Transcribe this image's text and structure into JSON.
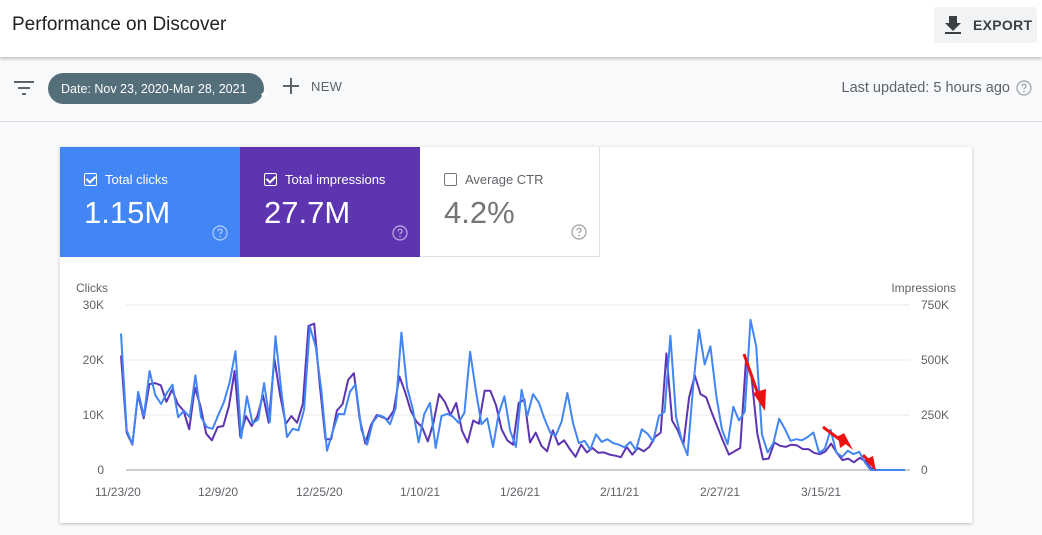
{
  "header": {
    "title": "Performance on Discover",
    "export_label": "EXPORT"
  },
  "toolbar": {
    "date_filter": "Date: Nov 23, 2020-Mar 28, 2021",
    "new_label": "NEW",
    "last_updated": "Last updated: 5 hours ago"
  },
  "metrics": [
    {
      "label": "Total clicks",
      "value": "1.15M",
      "checked": true,
      "color": "#4285f4"
    },
    {
      "label": "Total impressions",
      "value": "27.7M",
      "checked": true,
      "color": "#5e35b1"
    },
    {
      "label": "Average CTR",
      "value": "4.2%",
      "checked": false,
      "color": "#ffffff"
    }
  ],
  "chart": {
    "left_axis_title": "Clicks",
    "right_axis_title": "Impressions",
    "left_ticks": [
      "30K",
      "20K",
      "10K",
      "0"
    ],
    "right_ticks": [
      "750K",
      "500K",
      "250K",
      "0"
    ],
    "x_ticks": [
      "11/23/20",
      "12/9/20",
      "12/25/20",
      "1/10/21",
      "1/26/21",
      "2/11/21",
      "2/27/21",
      "3/15/21"
    ]
  },
  "chart_data": {
    "type": "line",
    "title": "Performance on Discover",
    "x_start": "11/23/20",
    "x_end": "3/28/21",
    "x_tick_labels": [
      "11/23/20",
      "12/9/20",
      "12/25/20",
      "1/10/21",
      "1/26/21",
      "2/11/21",
      "2/27/21",
      "3/15/21"
    ],
    "ylabel_left": "Clicks",
    "ylabel_right": "Impressions",
    "ylim_left": [
      0,
      30000
    ],
    "ylim_right": [
      0,
      750000
    ],
    "grid": true,
    "legend_position": "top-metric-cards",
    "series": [
      {
        "name": "Clicks",
        "axis": "left",
        "color": "#4285f4",
        "values": [
          24800,
          7200,
          4700,
          14200,
          9800,
          18000,
          13600,
          12000,
          14000,
          15500,
          9600,
          10800,
          9600,
          17200,
          9600,
          7800,
          7500,
          10000,
          12400,
          16000,
          21600,
          5800,
          13400,
          8500,
          9200,
          15800,
          8700,
          24300,
          14600,
          6000,
          7500,
          7200,
          11000,
          26100,
          22500,
          14600,
          3500,
          7000,
          10200,
          10100,
          14200,
          15600,
          7300,
          4600,
          8700,
          10000,
          9600,
          8300,
          11300,
          25000,
          15000,
          11000,
          5000,
          10200,
          12200,
          4000,
          9800,
          10200,
          9700,
          8600,
          10400,
          21500,
          14500,
          8300,
          9400,
          4200,
          10200,
          13400,
          7200,
          4200,
          14600,
          9800,
          13800,
          12300,
          9300,
          6800,
          6300,
          8800,
          14000,
          8500,
          4900,
          5300,
          3700,
          6500,
          5100,
          5600,
          4900,
          4600,
          4100,
          5100,
          3600,
          7400,
          6600,
          5200,
          9800,
          10600,
          24400,
          9600,
          5400,
          2700,
          15500,
          25500,
          19200,
          22500,
          13600,
          7400,
          4700,
          11500,
          9000,
          10600,
          27300,
          22500,
          6500,
          3200,
          4900,
          9300,
          7500,
          5300,
          5600,
          5400,
          6000,
          6800,
          3100,
          3900,
          7300,
          3200,
          2400,
          3500,
          2900,
          3300,
          1400,
          0,
          0,
          0,
          0,
          0,
          0,
          0
        ]
      },
      {
        "name": "Impressions",
        "axis": "right",
        "color": "#5e35b1",
        "values": [
          520000,
          170000,
          115000,
          345000,
          235000,
          390000,
          395000,
          385000,
          310000,
          365000,
          300000,
          270000,
          185000,
          375000,
          290000,
          165000,
          135000,
          195000,
          200000,
          290000,
          450000,
          150000,
          245000,
          200000,
          245000,
          340000,
          215000,
          505000,
          340000,
          210000,
          245000,
          215000,
          300000,
          655000,
          665000,
          385000,
          140000,
          140000,
          270000,
          300000,
          410000,
          440000,
          235000,
          120000,
          205000,
          250000,
          240000,
          230000,
          270000,
          425000,
          355000,
          270000,
          220000,
          195000,
          130000,
          215000,
          345000,
          310000,
          250000,
          305000,
          180000,
          125000,
          225000,
          210000,
          360000,
          360000,
          295000,
          185000,
          135000,
          115000,
          305000,
          320000,
          125000,
          170000,
          110000,
          85000,
          180000,
          115000,
          135000,
          95000,
          60000,
          115000,
          80000,
          100000,
          78000,
          80000,
          70000,
          65000,
          58000,
          105000,
          70000,
          100000,
          85000,
          105000,
          150000,
          170000,
          530000,
          225000,
          180000,
          115000,
          330000,
          430000,
          345000,
          330000,
          260000,
          195000,
          130000,
          70000,
          85000,
          100000,
          495000,
          420000,
          165000,
          48000,
          52000,
          125000,
          110000,
          105000,
          115000,
          112000,
          95000,
          95000,
          78000,
          72000,
          85000,
          120000,
          78000,
          45000,
          52000,
          35000,
          55000,
          42000,
          8000,
          0,
          0,
          0,
          0,
          0,
          0
        ]
      }
    ],
    "annotations": [
      "red arrow near 3/3/21 pointing down",
      "red arrow near 3/20/21 pointing down",
      "red arrow near 3/23/21 pointing to zero"
    ]
  }
}
